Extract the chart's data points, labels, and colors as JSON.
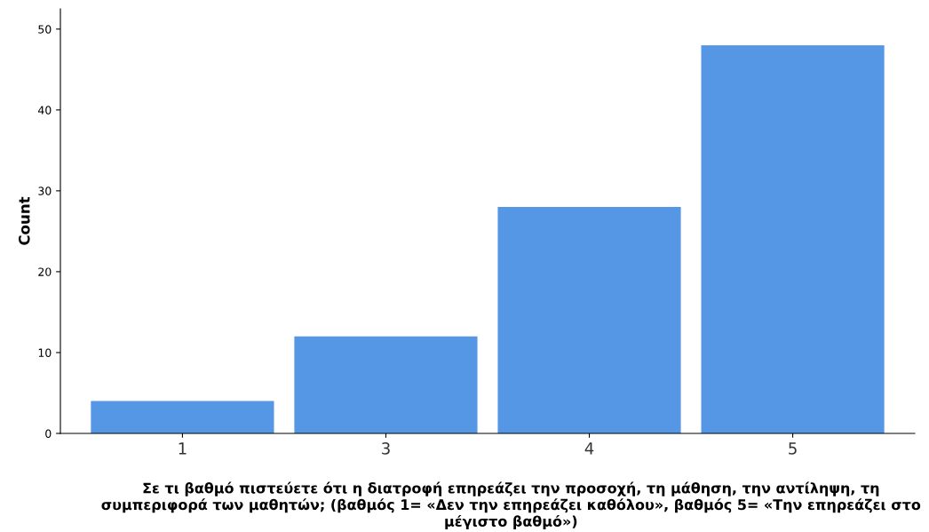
{
  "chart_data": {
    "type": "bar",
    "xlabel": "Σε τι βαθμό πιστεύετε ότι η διατροφή επηρεάζει την προσοχή, τη μάθηση, την αντίληψη, τη συμπεριφορά των μαθητών; (βαθμός 1= «Δεν την επηρεάζει καθόλου», βαθμός 5= «Την επηρεάζει στο μέγιστο βαθμό»)",
    "ylabel": "Count",
    "categories": [
      "1",
      "3",
      "4",
      "5"
    ],
    "values": [
      4,
      12,
      28,
      48
    ],
    "color": "#5596e5",
    "ylim": [
      0,
      52.5
    ],
    "yticks": [
      0,
      10,
      20,
      30,
      40,
      50
    ],
    "grid": false
  }
}
